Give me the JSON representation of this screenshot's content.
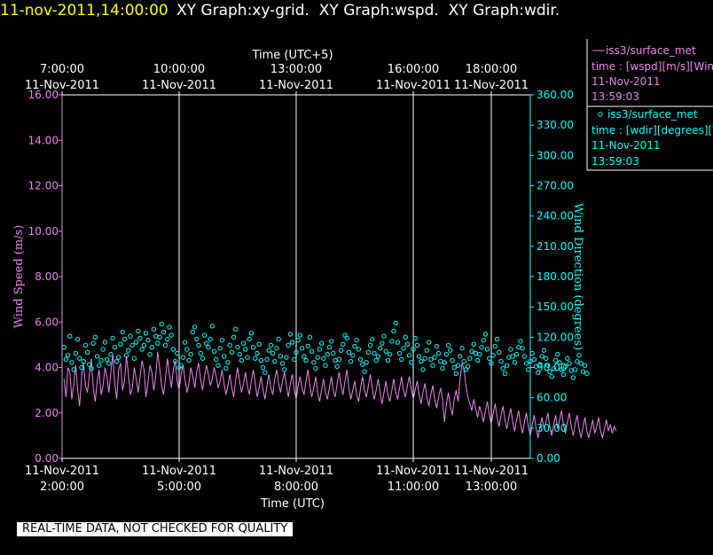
{
  "header": {
    "datetime": "11-nov-2011,14:00:00",
    "graphs": "XY Graph:xy-grid.  XY Graph:wspd.  XY Graph:wdir."
  },
  "legend": {
    "wspd": {
      "line1": "iss3/surface_met",
      "line2": "time : [wspd][m/s][Wind",
      "line3": "11-Nov-2011",
      "line4": "13:59:03"
    },
    "wdir": {
      "line1": "iss3/surface_met",
      "line2": "time : [wdir][degrees][V",
      "line3": "11-Nov-2011",
      "line4": "13:59:03"
    }
  },
  "footer_notice": "REAL-TIME DATA, NOT CHECKED FOR QUALITY",
  "colors": {
    "wspd": "#ee82ee",
    "wdir": "#00ffff",
    "header": "#ffff00",
    "axes": "#ffffff",
    "background": "#000000"
  },
  "chart_data": {
    "type": "scatter",
    "x_bottom": {
      "label": "Time (UTC)",
      "ticks": [
        {
          "t": 2,
          "date": "11-Nov-2011",
          "time": "2:00:00"
        },
        {
          "t": 5,
          "date": "11-Nov-2011",
          "time": "5:00:00"
        },
        {
          "t": 8,
          "date": "11-Nov-2011",
          "time": "8:00:00"
        },
        {
          "t": 11,
          "date": "11-Nov-2011",
          "time": "11:00:00"
        },
        {
          "t": 13,
          "date": "11-Nov-2011",
          "time": "13:00:00"
        }
      ],
      "range_hours_utc": [
        2.0,
        14.0
      ]
    },
    "x_top": {
      "label": "Time (UTC+5)",
      "ticks": [
        {
          "t": 2,
          "date": "11-Nov-2011",
          "time": "7:00:00"
        },
        {
          "t": 5,
          "date": "11-Nov-2011",
          "time": "10:00:00"
        },
        {
          "t": 8,
          "date": "11-Nov-2011",
          "time": "13:00:00"
        },
        {
          "t": 11,
          "date": "11-Nov-2011",
          "time": "16:00:00"
        },
        {
          "t": 13,
          "date": "11-Nov-2011",
          "time": "18:00:00"
        }
      ]
    },
    "y_left": {
      "label": "Wind Speed (m/s)",
      "range": [
        0,
        16
      ],
      "ticks": [
        "0.00",
        "2.00",
        "4.00",
        "6.00",
        "8.00",
        "10.00",
        "12.00",
        "14.00",
        "16.00"
      ]
    },
    "y_right": {
      "label": "Wind Direction (degrees)",
      "range": [
        0,
        360
      ],
      "ticks": [
        "0.00",
        "30.00",
        "60.00",
        "90.00",
        "120.00",
        "150.00",
        "180.00",
        "210.00",
        "240.00",
        "270.00",
        "300.00",
        "330.00",
        "360.00"
      ]
    },
    "grid": "vertical lines at bottom-axis ticks",
    "series": [
      {
        "key": "wspd",
        "axis": "left",
        "style": "line",
        "sampling_minutes": 3,
        "values": [
          3.5,
          2.7,
          4.0,
          3.8,
          2.6,
          3.3,
          4.1,
          3.0,
          2.3,
          3.6,
          4.2,
          3.2,
          2.9,
          3.7,
          4.4,
          3.1,
          2.5,
          3.4,
          3.9,
          2.8,
          3.2,
          4.0,
          3.6,
          2.9,
          3.8,
          4.6,
          3.3,
          2.6,
          3.9,
          4.2,
          3.0,
          3.4,
          4.5,
          3.7,
          2.8,
          3.1,
          4.0,
          3.5,
          2.9,
          3.6,
          4.3,
          3.9,
          2.7,
          3.3,
          4.1,
          3.8,
          3.0,
          3.6,
          4.7,
          4.0,
          3.2,
          2.8,
          3.5,
          4.4,
          3.7,
          3.1,
          3.9,
          4.3,
          3.4,
          3.0,
          3.7,
          4.1,
          3.5,
          2.9,
          3.3,
          4.0,
          3.6,
          3.1,
          3.8,
          4.2,
          3.5,
          3.0,
          3.6,
          4.1,
          3.7,
          3.2,
          3.5,
          4.0,
          3.6,
          3.1,
          3.4,
          3.9,
          3.3,
          2.8,
          3.2,
          3.7,
          3.1,
          2.7,
          3.5,
          4.0,
          3.4,
          2.9,
          3.3,
          3.8,
          3.2,
          2.8,
          3.4,
          3.9,
          3.3,
          2.7,
          3.1,
          3.6,
          3.0,
          2.6,
          3.2,
          3.7,
          3.1,
          2.8,
          3.5,
          3.9,
          3.3,
          2.9,
          3.4,
          3.8,
          3.2,
          2.7,
          3.3,
          3.7,
          3.0,
          2.6,
          3.2,
          3.6,
          3.1,
          2.8,
          3.4,
          3.9,
          3.2,
          2.7,
          3.1,
          3.6,
          2.9,
          2.5,
          3.0,
          3.5,
          2.9,
          2.6,
          3.1,
          3.6,
          3.0,
          2.7,
          3.3,
          3.8,
          3.2,
          2.8,
          3.4,
          3.9,
          3.1,
          2.6,
          3.0,
          3.4,
          2.8,
          2.5,
          3.1,
          3.6,
          3.0,
          2.7,
          3.2,
          3.7,
          3.1,
          2.6,
          3.0,
          3.5,
          2.9,
          2.4,
          2.9,
          3.4,
          2.8,
          2.5,
          3.0,
          3.5,
          2.9,
          2.6,
          3.1,
          3.6,
          3.0,
          2.7,
          3.2,
          3.6,
          3.0,
          2.6,
          3.0,
          3.4,
          2.8,
          2.4,
          2.9,
          3.3,
          2.7,
          2.3,
          2.8,
          3.2,
          2.6,
          2.2,
          2.7,
          3.1,
          2.6,
          1.6,
          2.4,
          2.9,
          2.3,
          1.9,
          2.6,
          3.0,
          2.5,
          3.5,
          4.2,
          3.9,
          3.2,
          2.7,
          2.4,
          2.1,
          2.6,
          2.2,
          1.8,
          2.3,
          2.0,
          1.6,
          2.1,
          2.5,
          1.9,
          1.5,
          2.0,
          2.4,
          1.8,
          1.4,
          1.9,
          2.3,
          1.7,
          1.3,
          1.8,
          2.2,
          1.6,
          1.2,
          1.7,
          2.1,
          1.5,
          1.1,
          1.6,
          2.0,
          1.4,
          1.0,
          1.5,
          1.9,
          1.3,
          0.9,
          1.4,
          1.8,
          1.3,
          1.6,
          2.0,
          1.4,
          1.0,
          1.5,
          1.9,
          1.3,
          1.7,
          2.1,
          1.5,
          1.1,
          1.6,
          2.0,
          1.4,
          1.0,
          1.5,
          1.9,
          1.3,
          0.9,
          1.4,
          1.8,
          1.2,
          0.9,
          1.3,
          1.7,
          1.1,
          1.4,
          1.8,
          1.2,
          0.9,
          1.3,
          1.7,
          1.2,
          1.5,
          1.1,
          1.4,
          1.2
        ]
      },
      {
        "key": "wdir",
        "axis": "right",
        "style": "circles",
        "sampling_minutes": 3,
        "values": [
          110,
          98,
          102,
          121,
          95,
          88,
          104,
          118,
          99,
          90,
          96,
          112,
          105,
          93,
          89,
          114,
          120,
          101,
          92,
          97,
          108,
          115,
          98,
          94,
          103,
          119,
          110,
          96,
          100,
          113,
          125,
          118,
          102,
          107,
          121,
          112,
          99,
          115,
          126,
          119,
          108,
          112,
          124,
          117,
          103,
          110,
          128,
          121,
          114,
          120,
          133,
          125,
          112,
          118,
          130,
          122,
          108,
          96,
          104,
          90,
          92,
          100,
          115,
          108,
          97,
          103,
          125,
          130,
          118,
          112,
          104,
          99,
          122,
          114,
          110,
          118,
          131,
          106,
          98,
          92,
          109,
          117,
          101,
          89,
          95,
          112,
          105,
          120,
          128,
          110,
          103,
          97,
          114,
          108,
          100,
          118,
          124,
          110,
          99,
          104,
          113,
          97,
          90,
          85,
          98,
          107,
          112,
          104,
          96,
          109,
          118,
          101,
          94,
          88,
          100,
          112,
          123,
          115,
          98,
          105,
          117,
          122,
          109,
          101,
          97,
          111,
          120,
          106,
          95,
          89,
          100,
          108,
          114,
          99,
          92,
          103,
          110,
          116,
          104,
          97,
          91,
          98,
          107,
          113,
          122,
          119,
          105,
          96,
          102,
          111,
          117,
          108,
          98,
          93,
          86,
          95,
          105,
          112,
          118,
          104,
          97,
          101,
          109,
          114,
          121,
          106,
          97,
          103,
          116,
          126,
          134,
          115,
          104,
          98,
          109,
          120,
          113,
          102,
          95,
          108,
          119,
          112,
          101,
          96,
          88,
          99,
          107,
          115,
          98,
          92,
          100,
          111,
          104,
          96,
          89,
          95,
          103,
          112,
          107,
          97,
          90,
          84,
          92,
          101,
          109,
          96,
          88,
          91,
          99,
          106,
          113,
          104,
          97,
          103,
          110,
          117,
          123,
          108,
          99,
          94,
          102,
          111,
          118,
          105,
          96,
          89,
          84,
          92,
          100,
          108,
          101,
          95,
          103,
          110,
          116,
          109,
          101,
          94,
          88,
          96,
          104,
          98,
          91,
          85,
          93,
          101,
          107,
          99,
          92,
          86,
          81,
          89,
          97,
          103,
          95,
          88,
          83,
          91,
          99,
          94,
          87,
          80,
          88,
          96,
          102,
          94,
          86,
          92,
          84
        ]
      }
    ]
  }
}
